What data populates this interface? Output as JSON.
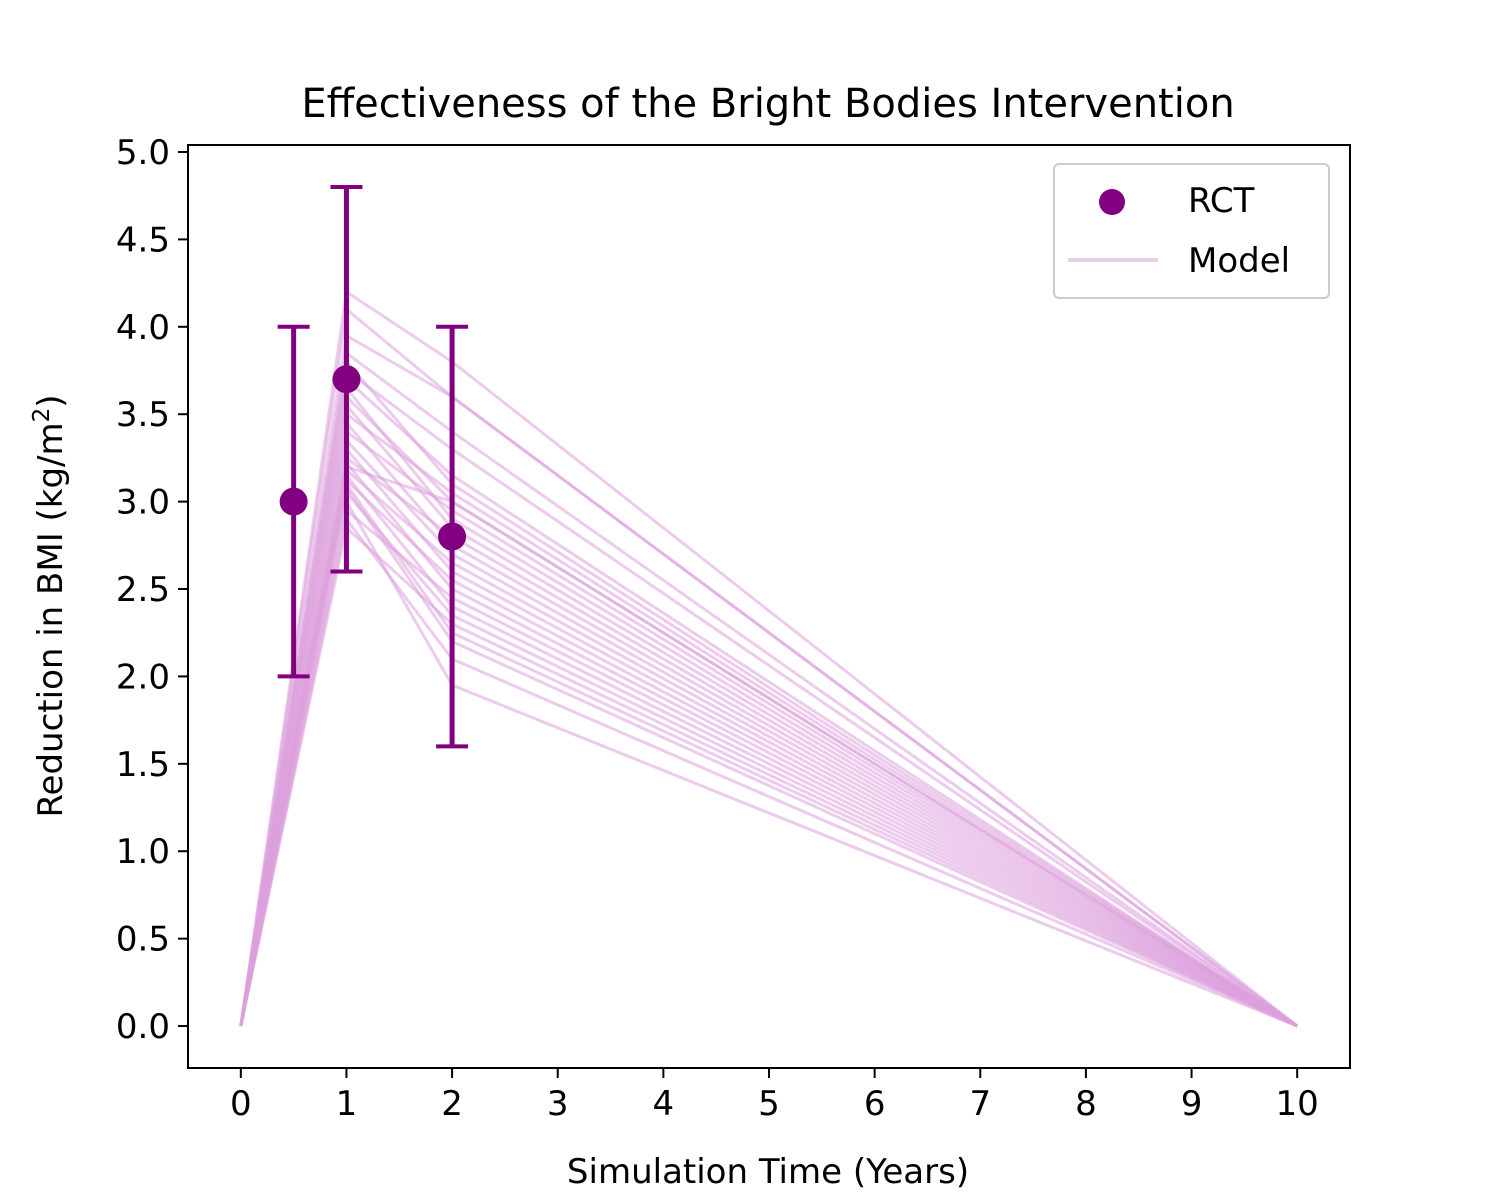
{
  "chart_data": {
    "type": "line",
    "title": "Effectiveness of the Bright Bodies Intervention",
    "xlabel": "Simulation Time (Years)",
    "ylabel_main": "Reduction in BMI (kg/m",
    "ylabel_sup": "2",
    "ylabel_close": ")",
    "xlim": [
      -0.5,
      10.5
    ],
    "ylim": [
      -0.24,
      5.04
    ],
    "xticks": [
      0,
      1,
      2,
      3,
      4,
      5,
      6,
      7,
      8,
      9,
      10
    ],
    "xtick_labels": [
      "0",
      "1",
      "2",
      "3",
      "4",
      "5",
      "6",
      "7",
      "8",
      "9",
      "10"
    ],
    "yticks": [
      0.0,
      0.5,
      1.0,
      1.5,
      2.0,
      2.5,
      3.0,
      3.5,
      4.0,
      4.5,
      5.0
    ],
    "ytick_labels": [
      "0.0",
      "0.5",
      "1.0",
      "1.5",
      "2.0",
      "2.5",
      "3.0",
      "3.5",
      "4.0",
      "4.5",
      "5.0"
    ],
    "grid": false,
    "legend": {
      "placement": "top-right",
      "entries": [
        {
          "label": "RCT",
          "kind": "scatter",
          "color": "#800080"
        },
        {
          "label": "Model",
          "kind": "line",
          "color": "#dda0dd"
        }
      ]
    },
    "rct": {
      "name": "RCT",
      "color": "#800080",
      "points": [
        {
          "x": 0.5,
          "y": 3.0,
          "err_low": 2.0,
          "err_high": 4.0
        },
        {
          "x": 1.0,
          "y": 3.7,
          "err_low": 2.6,
          "err_high": 4.8
        },
        {
          "x": 2.0,
          "y": 2.8,
          "err_low": 1.6,
          "err_high": 4.0
        }
      ]
    },
    "model": {
      "name": "Model",
      "color": "#dda0dd",
      "opacity": 0.55,
      "x": [
        0,
        1,
        2,
        10
      ],
      "runs": [
        [
          0,
          4.2,
          3.8,
          0
        ],
        [
          0,
          4.1,
          3.6,
          0
        ],
        [
          0,
          3.95,
          3.6,
          0
        ],
        [
          0,
          3.85,
          3.4,
          0
        ],
        [
          0,
          3.8,
          3.1,
          0
        ],
        [
          0,
          3.75,
          3.3,
          0
        ],
        [
          0,
          3.7,
          3.15,
          0
        ],
        [
          0,
          3.65,
          2.9,
          0
        ],
        [
          0,
          3.6,
          3.0,
          0
        ],
        [
          0,
          3.55,
          2.85,
          0
        ],
        [
          0,
          3.5,
          3.05,
          0
        ],
        [
          0,
          3.45,
          2.75,
          0
        ],
        [
          0,
          3.4,
          2.95,
          0
        ],
        [
          0,
          3.35,
          2.7,
          0
        ],
        [
          0,
          3.3,
          2.6,
          0
        ],
        [
          0,
          3.25,
          2.8,
          0
        ],
        [
          0,
          3.22,
          2.5,
          0
        ],
        [
          0,
          3.2,
          3.0,
          0
        ],
        [
          0,
          3.18,
          2.65,
          0
        ],
        [
          0,
          3.15,
          2.4,
          0
        ],
        [
          0,
          3.12,
          2.55,
          0
        ],
        [
          0,
          3.1,
          2.25,
          0
        ],
        [
          0,
          3.08,
          2.2,
          0
        ],
        [
          0,
          3.05,
          2.35,
          0
        ],
        [
          0,
          3.0,
          1.95,
          0
        ],
        [
          0,
          2.95,
          2.45,
          0
        ],
        [
          0,
          2.9,
          2.1,
          0
        ],
        [
          0,
          2.85,
          2.3,
          0
        ]
      ]
    }
  }
}
